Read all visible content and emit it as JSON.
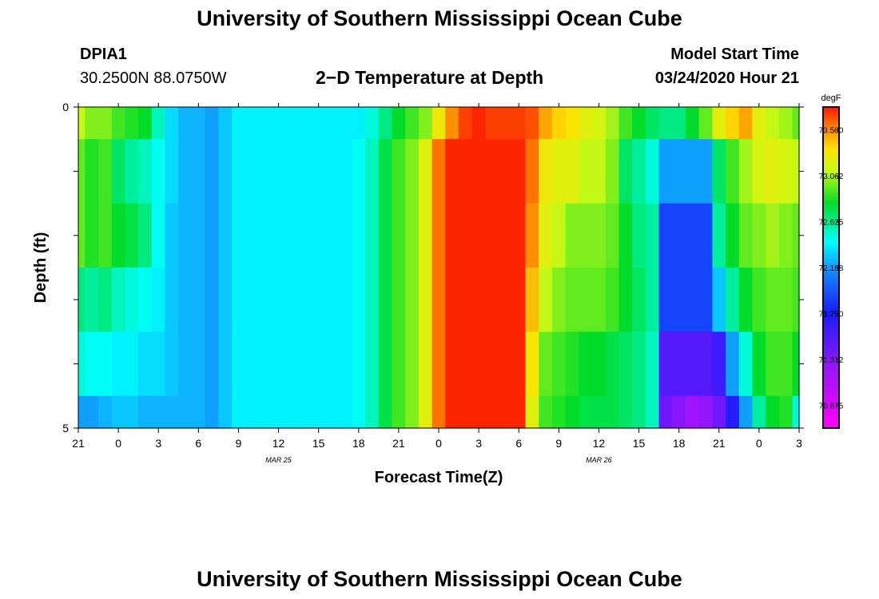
{
  "page": {
    "title_top": "University of Southern Mississippi Ocean Cube",
    "title_bottom": "University of Southern Mississippi Ocean Cube",
    "station_id": "DPIA1",
    "coordinates": "30.2500N 88.0750W",
    "plot_title": "2−D Temperature at Depth",
    "model_start_label": "Model Start Time",
    "model_start_value": "03/24/2020 Hour 21"
  },
  "chart_data": {
    "type": "heatmap",
    "title": "2-D Temperature at Depth",
    "xlabel": "Forecast Time(Z)",
    "ylabel": "Depth (ft)",
    "units": "degF",
    "x_tick_labels": [
      "21",
      "0",
      "3",
      "6",
      "9",
      "12",
      "15",
      "18",
      "21",
      "0",
      "3",
      "6",
      "9",
      "12",
      "15",
      "18",
      "21",
      "0",
      "3"
    ],
    "date_labels": [
      {
        "label": "MAR 25",
        "hour_offset": 15
      },
      {
        "label": "MAR 26",
        "hour_offset": 39
      }
    ],
    "x_hours": [
      0,
      1,
      2,
      3,
      4,
      5,
      6,
      7,
      8,
      9,
      10,
      11,
      12,
      13,
      14,
      15,
      16,
      17,
      18,
      19,
      20,
      21,
      22,
      23,
      24,
      25,
      26,
      27,
      28,
      29,
      30,
      31,
      32,
      33,
      34,
      35,
      36,
      37,
      38,
      39,
      40,
      41,
      42,
      43,
      44,
      45,
      46,
      47,
      48,
      49,
      50,
      51,
      52,
      53,
      54
    ],
    "depth_range": [
      0,
      5
    ],
    "y_tick_labels": [
      "0",
      "5"
    ],
    "depth_layers": [
      {
        "top": 0.0,
        "bottom": 0.5
      },
      {
        "top": 0.5,
        "bottom": 1.5
      },
      {
        "top": 1.5,
        "bottom": 2.5
      },
      {
        "top": 2.5,
        "bottom": 3.5
      },
      {
        "top": 3.5,
        "bottom": 4.5
      },
      {
        "top": 4.5,
        "bottom": 5.0
      }
    ],
    "colorbar": {
      "vmin": 70.66,
      "vmax": 73.72,
      "tick_labels": [
        "73.500",
        "73.062",
        "72.625",
        "72.188",
        "71.750",
        "71.312",
        "70.875"
      ],
      "tick_values": [
        73.5,
        73.062,
        72.625,
        72.188,
        71.75,
        71.312,
        70.875
      ]
    },
    "values": [
      [
        73.1,
        73.0,
        73.0,
        72.9,
        72.85,
        72.8,
        72.55,
        72.35,
        72.25,
        72.25,
        72.2,
        72.3,
        72.4,
        72.4,
        72.4,
        72.4,
        72.4,
        72.4,
        72.4,
        72.4,
        72.4,
        72.4,
        72.5,
        72.65,
        72.8,
        72.9,
        73.0,
        73.25,
        73.5,
        73.65,
        73.7,
        73.65,
        73.65,
        73.65,
        73.62,
        73.45,
        73.35,
        73.3,
        73.2,
        73.15,
        73.05,
        72.9,
        72.8,
        72.7,
        72.65,
        72.65,
        72.8,
        72.95,
        73.2,
        73.35,
        73.45,
        73.2,
        73.1,
        73.05,
        72.95
      ],
      [
        72.95,
        72.85,
        72.9,
        72.7,
        72.6,
        72.55,
        72.45,
        72.35,
        72.25,
        72.25,
        72.2,
        72.3,
        72.4,
        72.4,
        72.4,
        72.4,
        72.4,
        72.4,
        72.4,
        72.4,
        72.4,
        72.45,
        72.55,
        72.75,
        72.9,
        73.0,
        73.2,
        73.55,
        73.7,
        73.7,
        73.7,
        73.7,
        73.7,
        73.7,
        73.55,
        73.25,
        73.2,
        73.2,
        73.1,
        73.1,
        73.0,
        72.7,
        72.6,
        72.5,
        72.2,
        72.2,
        72.2,
        72.2,
        72.7,
        72.9,
        73.05,
        73.15,
        73.2,
        73.15,
        73.1
      ],
      [
        72.95,
        72.85,
        72.9,
        72.8,
        72.75,
        72.65,
        72.45,
        72.3,
        72.25,
        72.25,
        72.2,
        72.3,
        72.4,
        72.4,
        72.4,
        72.4,
        72.4,
        72.4,
        72.4,
        72.4,
        72.4,
        72.45,
        72.55,
        72.75,
        72.9,
        73.0,
        73.2,
        73.55,
        73.7,
        73.7,
        73.7,
        73.7,
        73.7,
        73.7,
        73.5,
        73.2,
        73.1,
        73.0,
        73.0,
        73.0,
        72.95,
        72.8,
        72.65,
        72.6,
        71.9,
        71.9,
        71.9,
        71.9,
        72.6,
        72.8,
        72.95,
        73.0,
        73.05,
        73.0,
        72.95
      ],
      [
        72.65,
        72.6,
        72.65,
        72.55,
        72.5,
        72.45,
        72.4,
        72.3,
        72.25,
        72.25,
        72.2,
        72.3,
        72.4,
        72.4,
        72.4,
        72.4,
        72.4,
        72.4,
        72.4,
        72.4,
        72.4,
        72.45,
        72.55,
        72.75,
        72.9,
        73.0,
        73.2,
        73.55,
        73.7,
        73.7,
        73.7,
        73.7,
        73.7,
        73.7,
        73.4,
        73.1,
        73.0,
        72.95,
        72.95,
        72.95,
        72.9,
        72.8,
        72.7,
        72.6,
        71.9,
        71.9,
        71.9,
        71.9,
        72.3,
        72.6,
        72.8,
        72.9,
        72.95,
        72.95,
        72.9
      ],
      [
        72.5,
        72.45,
        72.45,
        72.4,
        72.4,
        72.35,
        72.35,
        72.3,
        72.25,
        72.25,
        72.2,
        72.3,
        72.4,
        72.4,
        72.4,
        72.4,
        72.4,
        72.4,
        72.4,
        72.4,
        72.4,
        72.45,
        72.55,
        72.75,
        72.9,
        73.0,
        73.2,
        73.55,
        73.7,
        73.7,
        73.7,
        73.7,
        73.7,
        73.7,
        73.3,
        72.95,
        72.9,
        72.85,
        72.8,
        72.8,
        72.75,
        72.7,
        72.65,
        72.55,
        71.5,
        71.5,
        71.5,
        71.5,
        71.6,
        72.2,
        72.5,
        72.8,
        72.9,
        72.9,
        72.8
      ],
      [
        72.2,
        72.2,
        72.25,
        72.3,
        72.3,
        72.25,
        72.25,
        72.25,
        72.25,
        72.25,
        72.2,
        72.3,
        72.4,
        72.4,
        72.4,
        72.4,
        72.4,
        72.4,
        72.4,
        72.4,
        72.4,
        72.45,
        72.55,
        72.75,
        72.9,
        73.0,
        73.2,
        73.55,
        73.7,
        73.7,
        73.7,
        73.7,
        73.7,
        73.7,
        73.2,
        72.9,
        72.85,
        72.8,
        72.75,
        72.75,
        72.75,
        72.7,
        72.65,
        72.55,
        71.4,
        71.3,
        71.2,
        71.25,
        71.4,
        71.7,
        72.2,
        72.6,
        72.8,
        72.85,
        72.5
      ]
    ]
  }
}
